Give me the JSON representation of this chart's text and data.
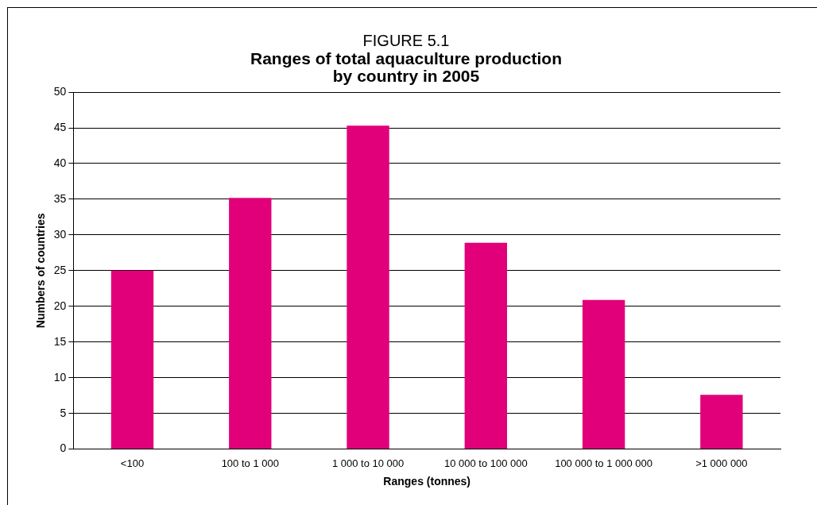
{
  "chart_data": {
    "type": "bar",
    "title": "FIGURE 5.1",
    "subtitle": "Ranges of total aquaculture production\nby country in 2005",
    "xlabel": "Ranges (tonnes)",
    "ylabel": "Numbers of countries",
    "categories": [
      "<100",
      "100 to 1 000",
      "1 000 to 10 000",
      "10 000 to 100 000",
      "100 000 to 1 000 000",
      ">1 000 000"
    ],
    "values": [
      25,
      35.2,
      45.3,
      28.9,
      20.9,
      7.6
    ],
    "color": "#e2007a",
    "ylim": [
      0,
      50
    ],
    "yticks": [
      0,
      5,
      10,
      15,
      20,
      25,
      30,
      35,
      40,
      45,
      50
    ],
    "grid": "y",
    "legend": false
  }
}
